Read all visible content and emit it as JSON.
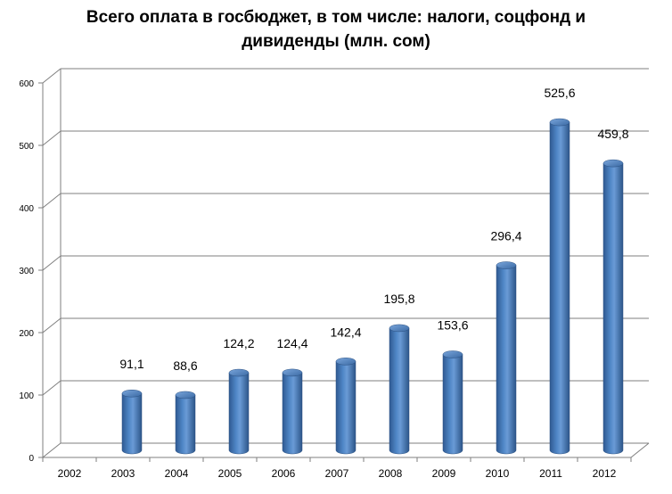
{
  "chart_data": {
    "type": "bar",
    "title_line1": "Всего оплата в госбюджет, в том числе: налоги, соцфонд и",
    "title_line2": "дивиденды (млн. сом)",
    "categories": [
      "2002",
      "2003",
      "2004",
      "2005",
      "2006",
      "2007",
      "2008",
      "2009",
      "2010",
      "2011",
      "2012"
    ],
    "values": [
      null,
      91.1,
      88.6,
      124.2,
      124.4,
      142.4,
      195.8,
      153.6,
      296.4,
      525.6,
      459.8
    ],
    "data_labels": [
      "",
      "91,1",
      "88,6",
      "124,2",
      "124,4",
      "142,4",
      "195,8",
      "153,6",
      "296,4",
      "525,6",
      "459,8"
    ],
    "yticks": [
      "0",
      "100",
      "200",
      "300",
      "400",
      "500",
      "600"
    ],
    "ylim": [
      0,
      600
    ],
    "grid": true,
    "legend": "none",
    "bar_color": "#4A7EBB"
  }
}
